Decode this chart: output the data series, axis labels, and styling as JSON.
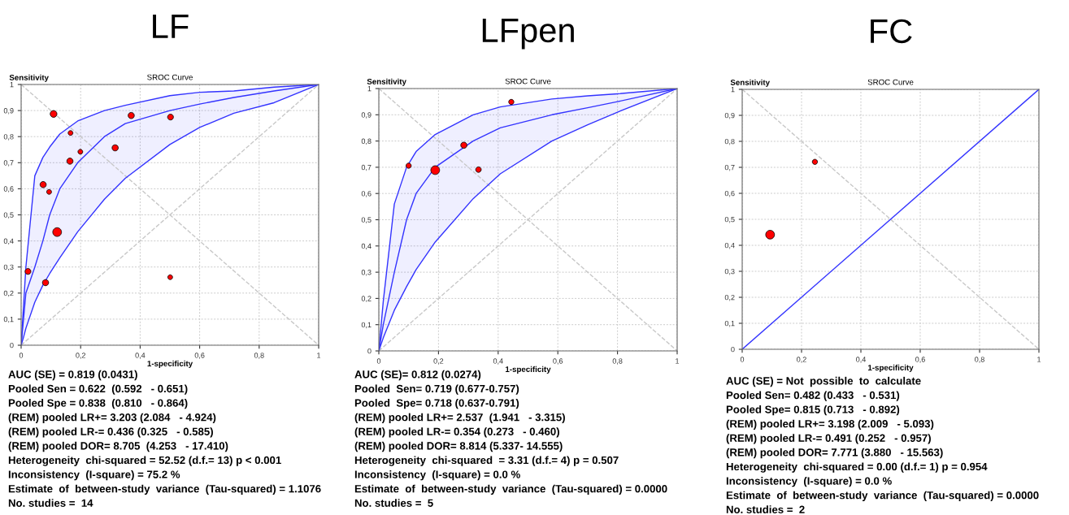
{
  "chart_data": [
    {
      "type": "bubble",
      "title": "LF",
      "subtitle": "SROC Curve",
      "xlabel": "1-specificity",
      "ylabel": "Sensitivity",
      "xlim": [
        0,
        1
      ],
      "ylim": [
        0,
        1
      ],
      "grid": true,
      "relative": false,
      "xticks": [
        0,
        {
          "value": 0.2,
          "label": "0,2"
        },
        {
          "value": 0.4,
          "label": "0,4"
        },
        {
          "value": 0.6,
          "label": "0,6"
        },
        {
          "value": 0.8,
          "label": "0,8"
        },
        1
      ],
      "yticks": [
        0,
        {
          "value": 0.1,
          "label": "0,1"
        },
        {
          "value": 0.2,
          "label": "0,2"
        },
        {
          "value": 0.3,
          "label": "0,3"
        },
        {
          "value": 0.4,
          "label": "0,4"
        },
        {
          "value": 0.5,
          "label": "0,5"
        },
        {
          "value": 0.6,
          "label": "0,6"
        },
        {
          "value": 0.7,
          "label": "0,7"
        },
        {
          "value": 0.8,
          "label": "0,8"
        },
        {
          "value": 0.9,
          "label": "0,9"
        },
        1
      ],
      "series": [
        {
          "type": "line",
          "color": "#c8c8c8",
          "line_style": "dashed",
          "marker": "none",
          "x": [
            0,
            1
          ],
          "values": [
            1,
            0
          ]
        },
        {
          "type": "line",
          "color": "#c8c8c8",
          "line_style": "dashed",
          "marker": "none",
          "x": [
            0,
            1
          ],
          "values": [
            0,
            1
          ]
        },
        {
          "type": "line",
          "color": "#3333ff",
          "line_style": "solid",
          "marker": "none",
          "x": [
            0,
            0.008,
            0.016,
            0.046,
            0.073,
            0.096,
            0.13,
            0.19,
            0.28,
            0.35,
            0.5,
            0.6,
            0.715,
            0.85,
            1
          ],
          "values": [
            0,
            0.1,
            0.2,
            0.3,
            0.4,
            0.5,
            0.6,
            0.7,
            0.8,
            0.85,
            0.9,
            0.925,
            0.95,
            0.975,
            1
          ],
          "upper": [
            0,
            0.15,
            0.3,
            0.65,
            0.72,
            0.76,
            0.81,
            0.86,
            0.9,
            0.92,
            0.957,
            0.97,
            0.975,
            0.99,
            1
          ],
          "lower": [
            0,
            0.03,
            0.065,
            0.165,
            0.23,
            0.275,
            0.335,
            0.435,
            0.56,
            0.64,
            0.77,
            0.835,
            0.89,
            0.93,
            1
          ]
        },
        {
          "color": "#ff0000",
          "marker": "circle",
          "x": [
            0.109,
            0.37,
            0.502,
            0.166,
            0.199,
            0.316,
            0.164,
            0.074,
            0.094,
            0.121,
            0.023,
            0.082,
            0.501
          ],
          "values": [
            0.887,
            0.881,
            0.875,
            0.814,
            0.742,
            0.757,
            0.706,
            0.616,
            0.588,
            0.434,
            0.283,
            0.24,
            0.261
          ],
          "sizes": [
            0.6,
            0.5,
            0.45,
            0.3,
            0.3,
            0.5,
            0.5,
            0.5,
            0.3,
            1,
            0.45,
            0.5,
            0.3
          ]
        }
      ],
      "annotations": [
        "AUC (SE) = 0.819 (0.0431)",
        "Pooled Sen = 0.622  (0.592   - 0.651)",
        "Pooled Spe = 0.838  (0.810   - 0.864)",
        "(REM) pooled LR+= 3.203 (2.084   - 4.924)",
        "(REM) pooled LR-= 0.436 (0.325   - 0.585)",
        "(REM) pooled DOR= 8.705  (4.253   - 17.410)",
        "Heterogeneity  chi-squared = 52.52 (d.f.= 13) p < 0.001",
        "Inconsistency  (I-square) = 75.2 %",
        "Estimate  of  between-study  variance  (Tau-squared) = 1.1076",
        "No. studies =  14"
      ]
    },
    {
      "type": "bubble",
      "title": "LFpen",
      "subtitle": "SROC Curve",
      "xlabel": "1-specificity",
      "ylabel": "Sensitivity",
      "xlim": [
        0,
        1
      ],
      "ylim": [
        0,
        1
      ],
      "grid": true,
      "xticks": [
        0,
        {
          "value": 0.2,
          "label": "0,2"
        },
        {
          "value": 0.4,
          "label": "0,4"
        },
        {
          "value": 0.6,
          "label": "0,6"
        },
        {
          "value": 0.8,
          "label": "0,8"
        },
        1
      ],
      "yticks": [
        0,
        {
          "value": 0.1,
          "label": "0,1"
        },
        {
          "value": 0.2,
          "label": "0,2"
        },
        {
          "value": 0.3,
          "label": "0,3"
        },
        {
          "value": 0.4,
          "label": "0,4"
        },
        {
          "value": 0.5,
          "label": "0,5"
        },
        {
          "value": 0.6,
          "label": "0,6"
        },
        {
          "value": 0.7,
          "label": "0,7"
        },
        {
          "value": 0.8,
          "label": "0,8"
        },
        {
          "value": 0.9,
          "label": "0,9"
        },
        1
      ],
      "series": [
        {
          "type": "line",
          "color": "#c8c8c8",
          "line_style": "dashed",
          "marker": "none",
          "x": [
            0,
            1
          ],
          "values": [
            1,
            0
          ]
        },
        {
          "type": "line",
          "color": "#c8c8c8",
          "line_style": "dashed",
          "marker": "none",
          "x": [
            0,
            1
          ],
          "values": [
            0,
            1
          ]
        },
        {
          "type": "line",
          "color": "#3333ff",
          "line_style": "solid",
          "marker": "none",
          "x": [
            0,
            0.015,
            0.052,
            0.093,
            0.125,
            0.189,
            0.316,
            0.407,
            0.58,
            0.7,
            0.8,
            1
          ],
          "values": [
            0,
            0.1,
            0.3,
            0.5,
            0.6,
            0.7,
            0.8,
            0.85,
            0.9,
            0.927,
            0.95,
            1
          ],
          "upper": [
            0,
            0.19,
            0.56,
            0.7,
            0.76,
            0.825,
            0.9,
            0.93,
            0.96,
            0.972,
            0.98,
            1
          ],
          "lower": [
            0,
            0.05,
            0.155,
            0.245,
            0.31,
            0.415,
            0.58,
            0.675,
            0.8,
            0.862,
            0.91,
            1
          ]
        },
        {
          "color": "#ff0000",
          "marker": "circle",
          "x": [
            0.1,
            0.189,
            0.285,
            0.334,
            0.444
          ],
          "values": [
            0.706,
            0.689,
            0.784,
            0.691,
            0.949
          ],
          "sizes": [
            0.35,
            1,
            0.5,
            0.4,
            0.35
          ]
        }
      ],
      "annotations": [
        "AUC (SE)= 0.812 (0.0274)",
        "Pooled  Sen= 0.719 (0.677-0.757)",
        "Pooled  Spe= 0.718 (0.637-0.791)",
        "(REM) pooled LR+= 2.537  (1.941   - 3.315)",
        "(REM) pooled LR-= 0.354 (0.273   - 0.460)",
        "(REM) pooled DOR= 8.814 (5.337- 14.555)",
        "Heterogeneity  chi-squared  = 3.31 (d.f.= 4) p = 0.507",
        "Inconsistency  (I-square) = 0.0 %",
        "Estimate  of  between-study  variance  (Tau-squared) = 0.0000",
        "No. studies =  5"
      ]
    },
    {
      "type": "bubble",
      "title": "FC",
      "subtitle": "SROC Curve",
      "xlabel": "1-specificity",
      "ylabel": "Sensitivity",
      "xlim": [
        0,
        1
      ],
      "ylim": [
        0,
        1
      ],
      "grid": true,
      "xticks": [
        0,
        {
          "value": 0.2,
          "label": "0,2"
        },
        {
          "value": 0.4,
          "label": "0,4"
        },
        {
          "value": 0.6,
          "label": "0,6"
        },
        {
          "value": 0.8,
          "label": "0,8"
        },
        1
      ],
      "yticks": [
        0,
        {
          "value": 0.1,
          "label": "0,1"
        },
        {
          "value": 0.2,
          "label": "0,2"
        },
        {
          "value": 0.3,
          "label": "0,3"
        },
        {
          "value": 0.4,
          "label": "0,4"
        },
        {
          "value": 0.5,
          "label": "0,5"
        },
        {
          "value": 0.6,
          "label": "0,6"
        },
        {
          "value": 0.7,
          "label": "0,7"
        },
        {
          "value": 0.8,
          "label": "0,8"
        },
        {
          "value": 0.9,
          "label": "0,9"
        },
        1
      ],
      "series": [
        {
          "type": "line",
          "color": "#c8c8c8",
          "line_style": "dashed",
          "marker": "none",
          "x": [
            0,
            1
          ],
          "values": [
            1,
            0
          ]
        },
        {
          "type": "line",
          "color": "#3333ff",
          "line_style": "solid",
          "marker": "none",
          "x": [
            0,
            1
          ],
          "values": [
            0,
            1
          ]
        },
        {
          "color": "#ff0000",
          "marker": "circle",
          "x": [
            0.094,
            0.245
          ],
          "values": [
            0.441,
            0.721
          ],
          "sizes": [
            1,
            0.35
          ]
        }
      ],
      "annotations": [
        "AUC (SE) = Not  possible  to  calculate",
        "Pooled Sen= 0.482 (0.433   - 0.531)",
        "Pooled Spe= 0.815 (0.713   - 0.892)",
        "(REM) pooled LR+= 3.198 (2.009   - 5.093)",
        "(REM) pooled LR-= 0.491 (0.252   - 0.957)",
        "(REM) pooled DOR= 7.771 (3.880   - 15.563)",
        "Heterogeneity  chi-squared = 0.00 (d.f.= 1) p = 0.954",
        "Inconsistency  (I-square) = 0.0 %",
        "Estimate  of  between-study  variance  (Tau-squared) = 0.0000",
        "No. studies =  2"
      ]
    }
  ]
}
